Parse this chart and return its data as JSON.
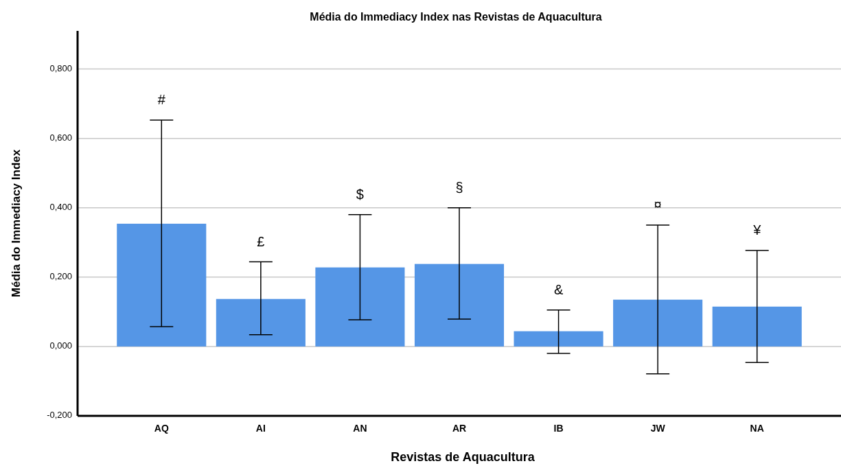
{
  "chart_data": {
    "type": "bar",
    "title": "Média do Immediacy Index nas Revistas de Aquacultura",
    "xlabel": "Revistas de Aquacultura",
    "ylabel": "Média do Immediacy Index",
    "categories": [
      "AQ",
      "AI",
      "AN",
      "AR",
      "IB",
      "JW",
      "NA"
    ],
    "values": [
      0.354,
      0.137,
      0.228,
      0.238,
      0.044,
      0.135,
      0.115
    ],
    "errors": [
      [
        0.057,
        0.653
      ],
      [
        0.034,
        0.244
      ],
      [
        0.077,
        0.38
      ],
      [
        0.079,
        0.4
      ],
      [
        -0.02,
        0.105
      ],
      [
        -0.079,
        0.35
      ],
      [
        -0.046,
        0.277
      ]
    ],
    "color": "#5596e6",
    "ylim": [
      -0.2,
      0.91
    ],
    "yticks": [
      {
        "value": -0.2,
        "label": "-0,200"
      },
      {
        "value": 0,
        "label": "0,000"
      },
      {
        "value": 0.2,
        "label": "0,200"
      },
      {
        "value": 0.4,
        "label": "0,400"
      },
      {
        "value": 0.6,
        "label": "0,600"
      },
      {
        "value": 0.8,
        "label": "0,800"
      }
    ],
    "grid": "y",
    "annotations": [
      "#",
      "£",
      "$",
      "§",
      "&",
      "¤",
      "¥"
    ]
  }
}
